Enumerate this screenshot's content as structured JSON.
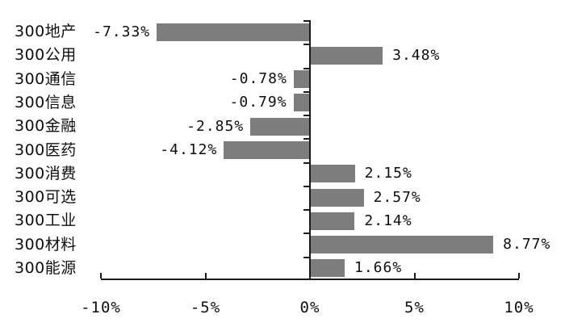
{
  "chart_data": {
    "type": "bar",
    "orientation": "horizontal",
    "title": "",
    "xlabel": "",
    "ylabel": "",
    "categories": [
      "300地产",
      "300公用",
      "300通信",
      "300信息",
      "300金融",
      "300医药",
      "300消费",
      "300可选",
      "300工业",
      "300材料",
      "300能源"
    ],
    "values": [
      -7.33,
      3.48,
      -0.78,
      -0.79,
      -2.85,
      -4.12,
      2.15,
      2.57,
      2.14,
      8.77,
      1.66
    ],
    "value_labels": [
      "-7.33%",
      "3.48%",
      "-0.78%",
      "-0.79%",
      "-2.85%",
      "-4.12%",
      "2.15%",
      "2.57%",
      "2.14%",
      "8.77%",
      "1.66%"
    ],
    "x_ticks": [
      {
        "value": -10,
        "label": "-10%"
      },
      {
        "value": -5,
        "label": "-5%"
      },
      {
        "value": 0,
        "label": "0%"
      },
      {
        "value": 5,
        "label": "5%"
      },
      {
        "value": 10,
        "label": "10%"
      }
    ],
    "xlim": [
      -10,
      10
    ],
    "grid": false,
    "legend": null,
    "bar_color": "#7d7d7d",
    "axis_color": "#1b1b1b",
    "text_color": "#0f0f0f"
  }
}
